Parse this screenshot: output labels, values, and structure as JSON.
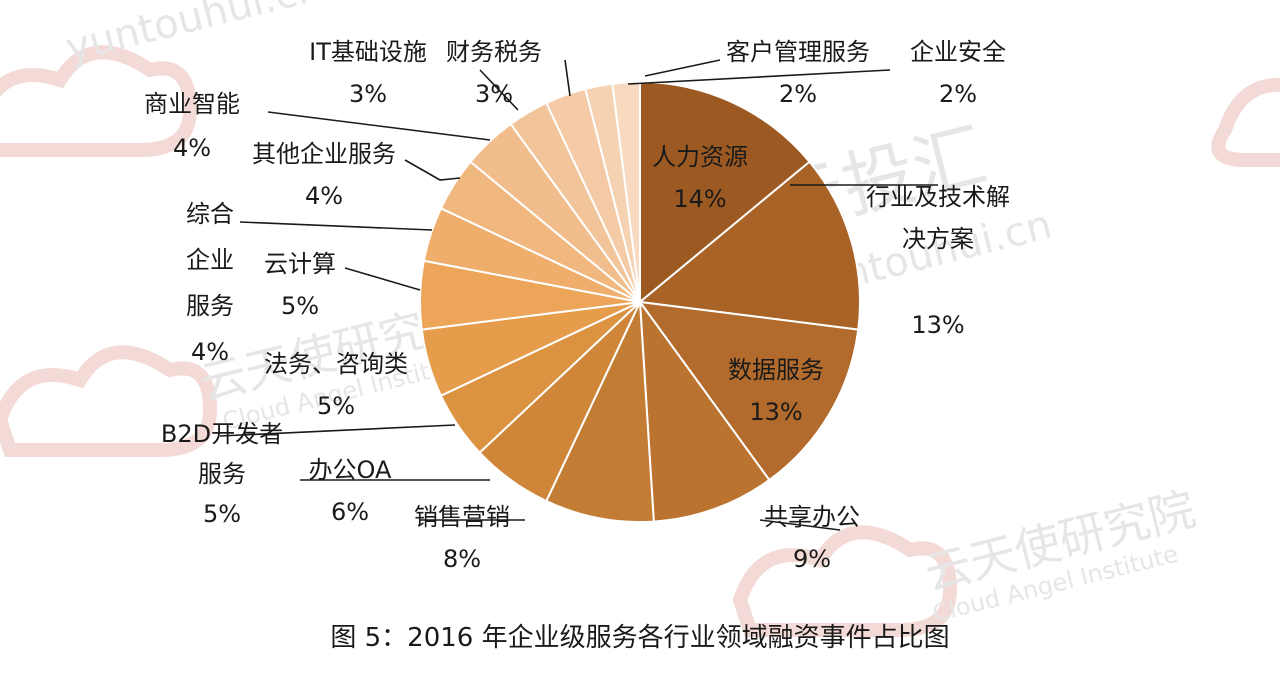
{
  "watermarks": {
    "brand_latin": "yuntouhui.cn",
    "brand_cn": "云投汇",
    "institute_cn": "云天使研究院",
    "institute_en": "Cloud Angel Institute"
  },
  "colors": {
    "series": [
      "#9c5a22",
      "#a96327",
      "#b26b2c",
      "#bb7430",
      "#c37c34",
      "#cf8638",
      "#db9341",
      "#e59d4c",
      "#eda55a",
      "#efae6c",
      "#f0b77e",
      "#f1bd8c",
      "#f2c49a",
      "#f4cba6",
      "#f5d2b2",
      "#f7dabf",
      "#f8e1cb"
    ],
    "watermark": "#f2dcd8"
  },
  "chart_data": {
    "type": "pie",
    "title": "图 5：2016 年企业级服务各行业领域融资事件占比图",
    "start": "12 o'clock",
    "direction": "clockwise",
    "slices": [
      {
        "label_lines": [
          "人力资源"
        ],
        "pct_text": "14%",
        "value": 14
      },
      {
        "label_lines": [
          "行业及技术解",
          "决方案"
        ],
        "pct_text": "13%",
        "value": 13
      },
      {
        "label_lines": [
          "数据服务"
        ],
        "pct_text": "13%",
        "value": 13
      },
      {
        "label_lines": [
          "共享办公"
        ],
        "pct_text": "9%",
        "value": 9
      },
      {
        "label_lines": [
          "销售营销"
        ],
        "pct_text": "8%",
        "value": 8
      },
      {
        "label_lines": [
          "办公OA"
        ],
        "pct_text": "6%",
        "value": 6
      },
      {
        "label_lines": [
          "B2D开发者",
          "服务"
        ],
        "pct_text": "5%",
        "value": 5
      },
      {
        "label_lines": [
          "法务、咨询类"
        ],
        "pct_text": "5%",
        "value": 5
      },
      {
        "label_lines": [
          "云计算"
        ],
        "pct_text": "5%",
        "value": 5
      },
      {
        "label_lines": [
          "综合",
          "企业",
          "服务"
        ],
        "pct_text": "4%",
        "value": 4
      },
      {
        "label_lines": [
          "其他企业服务"
        ],
        "pct_text": "4%",
        "value": 4
      },
      {
        "label_lines": [
          "商业智能"
        ],
        "pct_text": "4%",
        "value": 4
      },
      {
        "label_lines": [
          "IT基础设施"
        ],
        "pct_text": "3%",
        "value": 3
      },
      {
        "label_lines": [
          "财务税务"
        ],
        "pct_text": "3%",
        "value": 3
      },
      {
        "label_lines": [
          "客户管理服务"
        ],
        "pct_text": "2%",
        "value": 2
      },
      {
        "label_lines": [
          "企业安全"
        ],
        "pct_text": "2%",
        "value": 2
      }
    ]
  }
}
